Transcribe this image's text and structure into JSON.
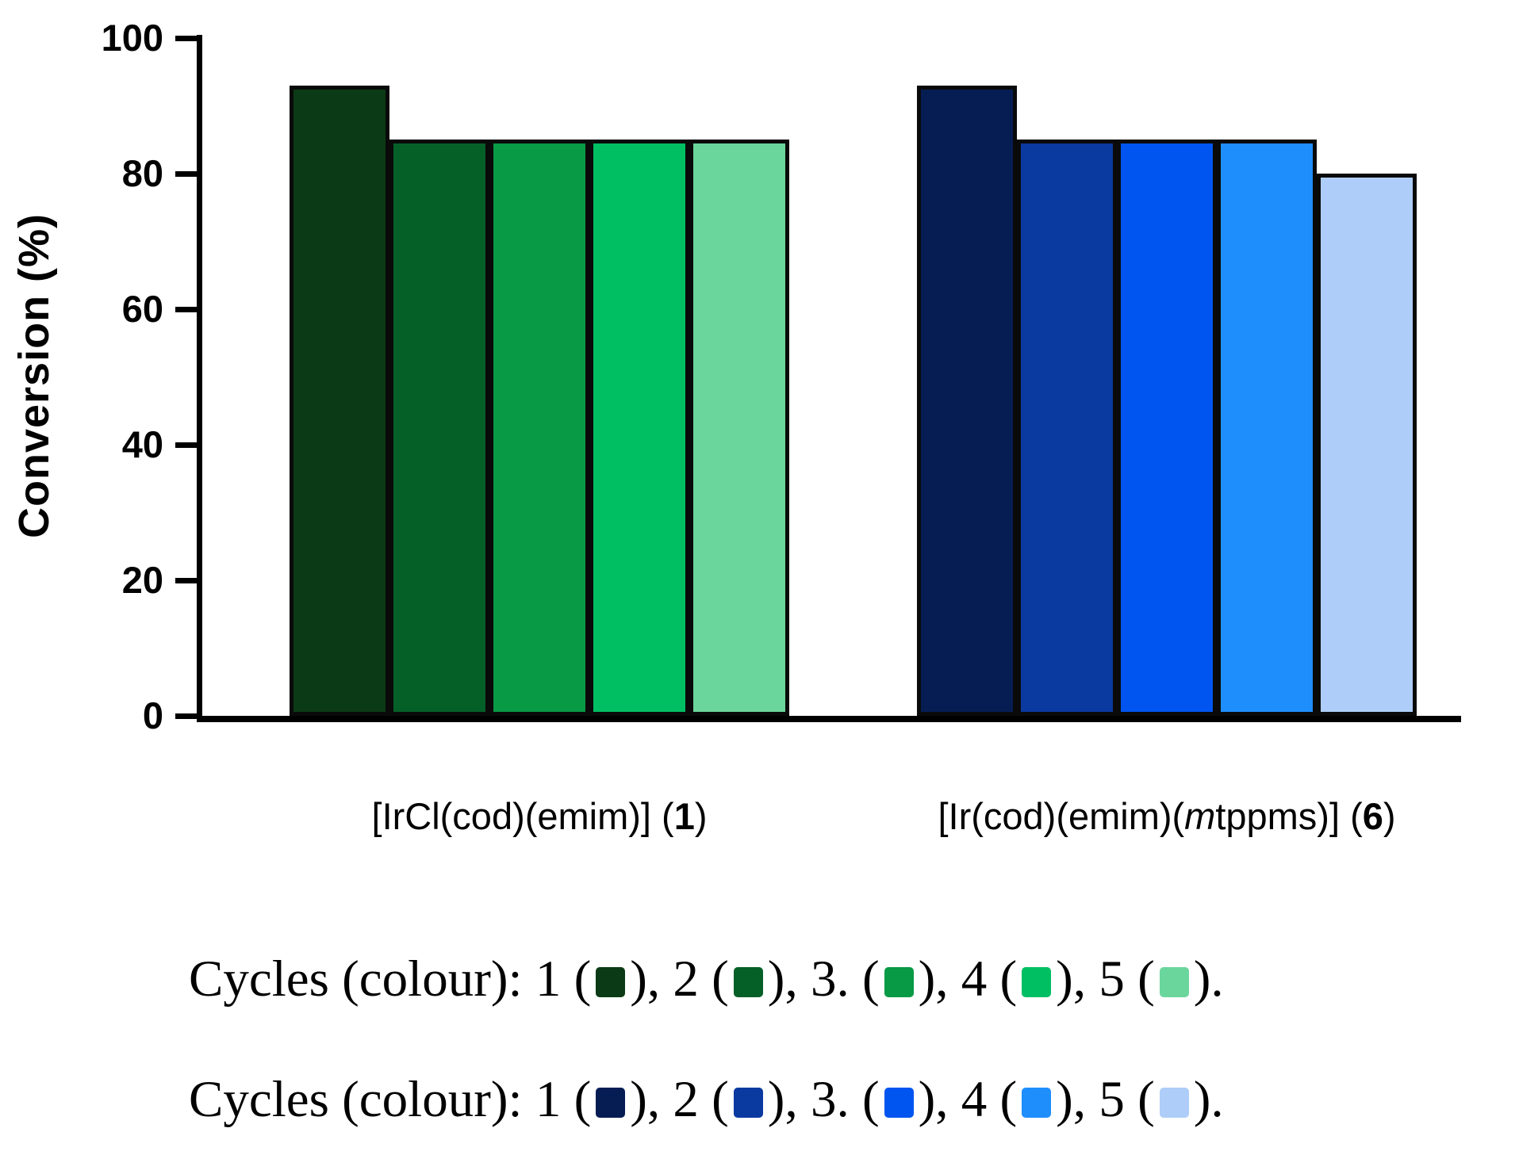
{
  "chart_data": {
    "type": "bar",
    "title": "",
    "xlabel": "",
    "ylabel": "Conversion (%)",
    "ylim": [
      0,
      100
    ],
    "yticks": [
      0,
      20,
      40,
      60,
      80,
      100
    ],
    "grid": false,
    "legend_position": "below",
    "cycle_labels": [
      "1",
      "2",
      "3.",
      "4",
      "5"
    ],
    "groups": [
      {
        "name": "[IrCl(cod)(emim)] (1)",
        "label_parts": [
          {
            "text": "[IrCl(cod)(emim)] (",
            "style": "normal"
          },
          {
            "text": "1",
            "style": "bold"
          },
          {
            "text": ")",
            "style": "normal"
          }
        ],
        "values": [
          93,
          85,
          85,
          85,
          85
        ],
        "colors": [
          "#0b3b16",
          "#056028",
          "#089a45",
          "#00bf63",
          "#6bd69c"
        ]
      },
      {
        "name": "[Ir(cod)(emim)(mtppms)] (6)",
        "label_parts": [
          {
            "text": "[Ir(cod)(emim)(",
            "style": "normal"
          },
          {
            "text": "m",
            "style": "italic"
          },
          {
            "text": "tppms)] (",
            "style": "normal"
          },
          {
            "text": "6",
            "style": "bold"
          },
          {
            "text": ")",
            "style": "normal"
          }
        ],
        "values": [
          93,
          85,
          85,
          85,
          80
        ],
        "colors": [
          "#061d54",
          "#0a39a0",
          "#0055f0",
          "#1f8efd",
          "#aecdf8"
        ]
      }
    ]
  },
  "axis": {
    "y_title": "Conversion (%)"
  },
  "legend": {
    "rows": [
      {
        "prefix": "Cycles (colour):",
        "items": [
          {
            "label": "1",
            "color": "#0b3b16"
          },
          {
            "label": "2",
            "color": "#056028"
          },
          {
            "label": "3.",
            "color": "#089a45"
          },
          {
            "label": "4",
            "color": "#00bf63"
          },
          {
            "label": "5",
            "color": "#6bd69c"
          }
        ],
        "suffix": "."
      },
      {
        "prefix": "Cycles (colour):",
        "items": [
          {
            "label": "1",
            "color": "#061d54"
          },
          {
            "label": "2",
            "color": "#0a39a0"
          },
          {
            "label": "3.",
            "color": "#0055f0"
          },
          {
            "label": "4",
            "color": "#1f8efd"
          },
          {
            "label": "5",
            "color": "#aecdf8"
          }
        ],
        "suffix": "."
      }
    ]
  }
}
